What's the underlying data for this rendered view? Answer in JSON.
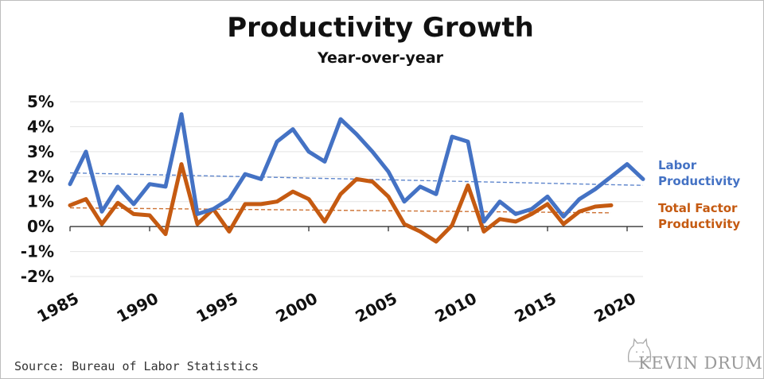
{
  "chart_data": {
    "type": "line",
    "title": "Productivity Growth",
    "subtitle": "Year-over-year",
    "x": [
      1985,
      1986,
      1987,
      1988,
      1989,
      1990,
      1991,
      1992,
      1993,
      1994,
      1995,
      1996,
      1997,
      1998,
      1999,
      2000,
      2001,
      2002,
      2003,
      2004,
      2005,
      2006,
      2007,
      2008,
      2009,
      2010,
      2011,
      2012,
      2013,
      2014,
      2015,
      2016,
      2017,
      2018,
      2019,
      2020,
      2021
    ],
    "x_ticks": [
      "1985",
      "1990",
      "1995",
      "2000",
      "2005",
      "2010",
      "2015",
      "2020"
    ],
    "y_ticks": [
      "5%",
      "4%",
      "3%",
      "2%",
      "1%",
      "0%",
      "-1%",
      "-2%"
    ],
    "ylim": [
      -2,
      5
    ],
    "grid": true,
    "series": [
      {
        "name": "Labor Productivity",
        "color": "#4472c4",
        "values": [
          1.7,
          3.0,
          0.6,
          1.6,
          0.9,
          1.7,
          1.6,
          4.5,
          0.5,
          0.7,
          1.1,
          2.1,
          1.9,
          3.4,
          3.9,
          3.0,
          2.6,
          4.3,
          3.7,
          3.0,
          2.2,
          1.0,
          1.6,
          1.3,
          3.6,
          3.4,
          0.2,
          1.0,
          0.5,
          0.7,
          1.2,
          0.4,
          1.1,
          1.5,
          2.0,
          2.5,
          1.9
        ],
        "trend": [
          2.15,
          1.65
        ]
      },
      {
        "name": "Total Factor Productivity",
        "color": "#c55a11",
        "values": [
          0.85,
          1.1,
          0.1,
          0.95,
          0.5,
          0.45,
          -0.3,
          2.5,
          0.1,
          0.7,
          -0.2,
          0.9,
          0.9,
          1.0,
          1.4,
          1.1,
          0.2,
          1.3,
          1.9,
          1.8,
          1.2,
          0.1,
          -0.2,
          -0.6,
          0.05,
          1.65,
          -0.2,
          0.3,
          0.2,
          0.5,
          0.9,
          0.1,
          0.6,
          0.8,
          0.85,
          null,
          null
        ],
        "trend": [
          0.75,
          0.55
        ]
      }
    ],
    "legend": [
      {
        "lines": [
          "Labor",
          "Productivity"
        ],
        "color": "#4472c4"
      },
      {
        "lines": [
          "Total Factor",
          "Productivity"
        ],
        "color": "#c55a11"
      }
    ]
  },
  "source": "Source: Bureau of Labor Statistics",
  "logo": "KEVIN DRUM"
}
